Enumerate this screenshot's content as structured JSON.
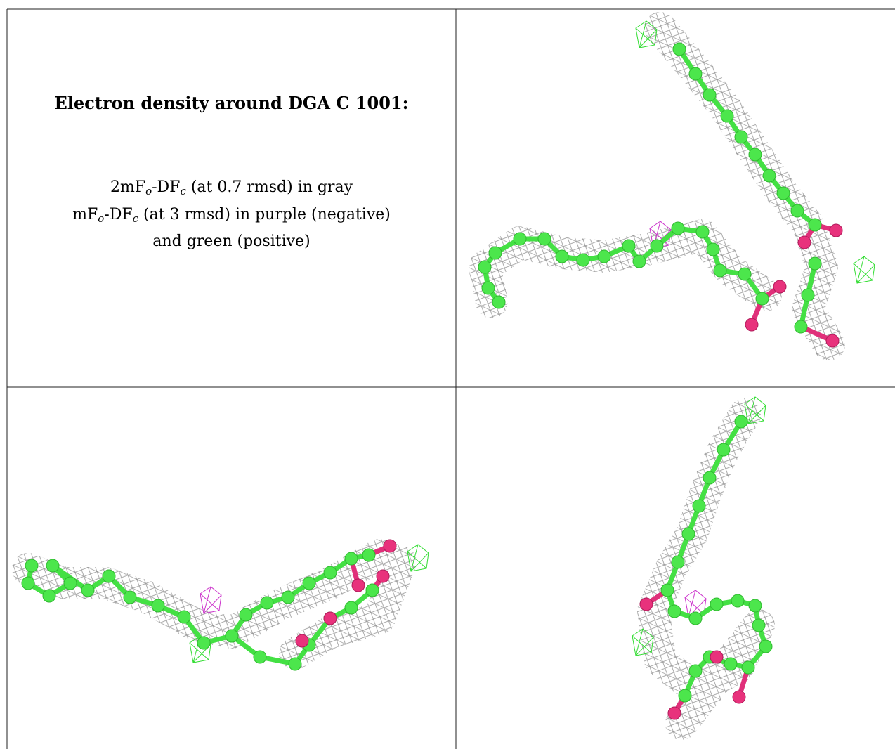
{
  "header": {
    "title": "Electron density around DGA C 1001:"
  },
  "legend": {
    "lines": [
      [
        "2mF",
        "o",
        "-DF",
        "c",
        " (at 0.7 rmsd) in gray"
      ],
      [
        "mF",
        "o",
        "-DF",
        "c",
        " (at 3 rmsd) in purple (negative)"
      ],
      [
        "and green (positive)"
      ]
    ]
  }
}
